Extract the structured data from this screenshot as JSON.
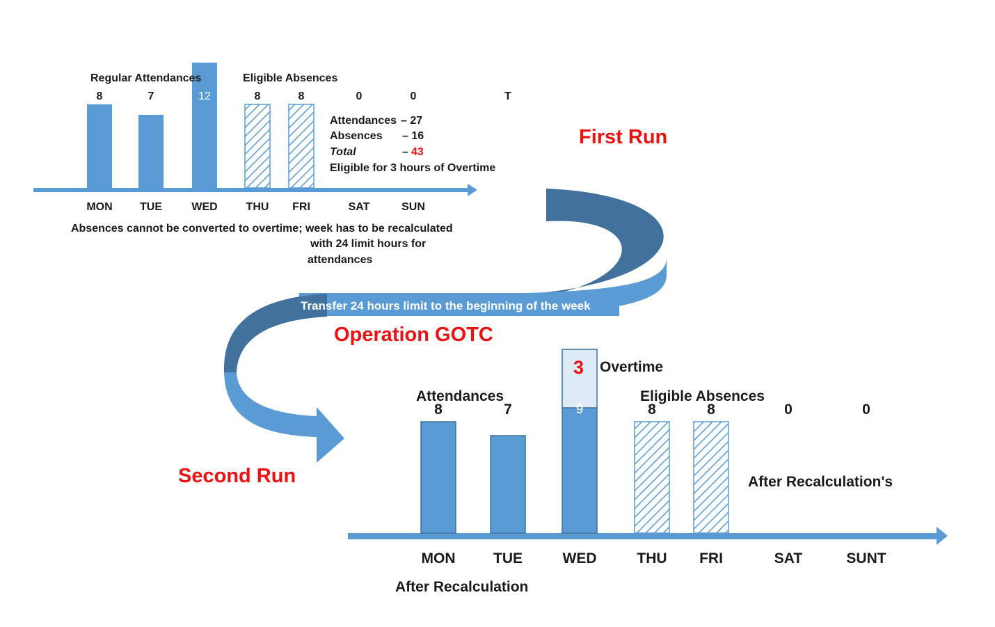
{
  "colors": {
    "bar": "#5b9bd5",
    "bar_edge": "#41719c",
    "overtime_fill": "#deebf7",
    "accent_red": "#ee1111",
    "arrow_dark": "#41719c",
    "arrow_light": "#5b9bd5"
  },
  "first_run": {
    "title": "First Run",
    "label_regular": "Regular Attendances",
    "label_eligible": "Eligible Absences",
    "t_marker": "T",
    "summary": {
      "attendances_label": "Attendances",
      "attendances_value": "– 27",
      "absences_label": "Absences",
      "absences_value": "– 16",
      "total_label": "Total",
      "total_dash": "–",
      "total_value": "43",
      "eligible_text": "Eligible for 3 hours of Overtime"
    },
    "note_line1": "Absences cannot be converted to overtime; week has to be recalculated",
    "note_line2": "with 24 limit hours for",
    "note_line3": "attendances"
  },
  "middle": {
    "transfer_text": "Transfer 24 hours limit to the beginning of the week",
    "operation": "Operation GOTC"
  },
  "second_run": {
    "title": "Second Run",
    "label_attendances": "Attendances",
    "label_eligible": "Eligible Absences",
    "overtime_value": "3",
    "overtime_label": "Overtime",
    "after_recalc_right": "After Recalculation's",
    "after_recalc_bottom": "After Recalculation"
  },
  "chart_data": [
    {
      "type": "bar",
      "title": "",
      "categories": [
        "MON",
        "TUE",
        "WED",
        "THU",
        "FRI",
        "SAT",
        "SUN"
      ],
      "series": [
        {
          "name": "Regular Attendances",
          "values": [
            8,
            7,
            12,
            null,
            null,
            null,
            null
          ]
        },
        {
          "name": "Eligible Absences",
          "values": [
            null,
            null,
            null,
            8,
            8,
            0,
            0
          ]
        }
      ],
      "data_labels": [
        "8",
        "7",
        "12",
        "8",
        "8",
        "0",
        "0"
      ],
      "ylim": [
        0,
        12
      ]
    },
    {
      "type": "bar",
      "title": "",
      "categories": [
        "MON",
        "TUE",
        "WED",
        "THU",
        "FRI",
        "SAT",
        "SUNT"
      ],
      "series": [
        {
          "name": "Attendances",
          "values": [
            8,
            7,
            9,
            null,
            null,
            null,
            null
          ]
        },
        {
          "name": "Overtime",
          "values": [
            null,
            null,
            3,
            null,
            null,
            null,
            null
          ]
        },
        {
          "name": "Eligible Absences",
          "values": [
            null,
            null,
            null,
            8,
            8,
            0,
            0
          ]
        }
      ],
      "data_labels": [
        "8",
        "7",
        "9",
        "8",
        "8",
        "0",
        "0"
      ],
      "ylim": [
        0,
        12
      ]
    }
  ]
}
